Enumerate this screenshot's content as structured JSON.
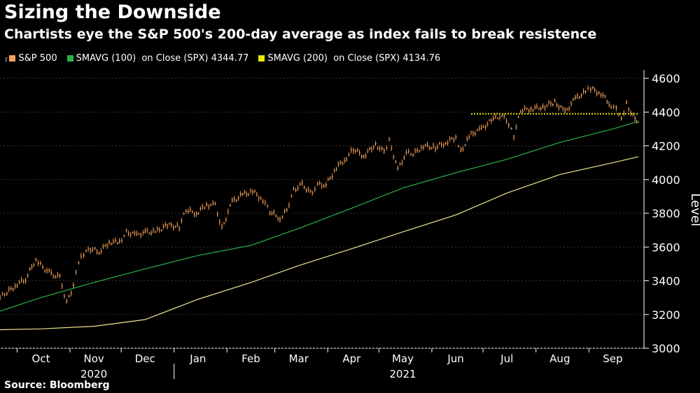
{
  "chart_data": {
    "type": "line",
    "title": "Sizing the Downside",
    "subtitle": "Chartists eye the S&P 500's 200-day average as index fails to break resistence",
    "ylabel": "Level",
    "ylim": [
      3000,
      4650
    ],
    "yticks": [
      3000,
      3200,
      3400,
      3600,
      3800,
      4000,
      4200,
      4400,
      4600
    ],
    "x_range": [
      "2020-09-21",
      "2021-09-30"
    ],
    "x_months": [
      {
        "label": "Oct",
        "date": "2020-10-15"
      },
      {
        "label": "Nov",
        "date": "2020-11-15"
      },
      {
        "label": "Dec",
        "date": "2020-12-15"
      },
      {
        "label": "Jan",
        "date": "2021-01-15"
      },
      {
        "label": "Feb",
        "date": "2021-02-15"
      },
      {
        "label": "Mar",
        "date": "2021-03-15"
      },
      {
        "label": "Apr",
        "date": "2021-04-15"
      },
      {
        "label": "May",
        "date": "2021-05-15"
      },
      {
        "label": "Jun",
        "date": "2021-06-15"
      },
      {
        "label": "Jul",
        "date": "2021-07-15"
      },
      {
        "label": "Aug",
        "date": "2021-08-15"
      },
      {
        "label": "Sep",
        "date": "2021-09-15"
      }
    ],
    "x_years": [
      {
        "label": "2020",
        "date": "2020-11-15"
      },
      {
        "label": "2021",
        "date": "2021-05-15"
      }
    ],
    "year_divider": "2021-01-01",
    "resistance_level": 4390,
    "resistance_start": "2021-06-24",
    "legend_position": "top-left",
    "series": [
      {
        "name": "S&P 500",
        "style": "ohlc",
        "color": "#f7a35c",
        "points": [
          [
            "2020-09-21",
            3300
          ],
          [
            "2020-09-25",
            3330
          ],
          [
            "2020-10-01",
            3380
          ],
          [
            "2020-10-06",
            3410
          ],
          [
            "2020-10-12",
            3530
          ],
          [
            "2020-10-16",
            3480
          ],
          [
            "2020-10-21",
            3440
          ],
          [
            "2020-10-26",
            3420
          ],
          [
            "2020-10-30",
            3270
          ],
          [
            "2020-11-03",
            3370
          ],
          [
            "2020-11-06",
            3510
          ],
          [
            "2020-11-09",
            3560
          ],
          [
            "2020-11-13",
            3590
          ],
          [
            "2020-11-18",
            3570
          ],
          [
            "2020-11-24",
            3630
          ],
          [
            "2020-11-30",
            3630
          ],
          [
            "2020-12-04",
            3690
          ],
          [
            "2020-12-10",
            3670
          ],
          [
            "2020-12-15",
            3690
          ],
          [
            "2020-12-21",
            3690
          ],
          [
            "2020-12-28",
            3730
          ],
          [
            "2021-01-04",
            3720
          ],
          [
            "2021-01-08",
            3820
          ],
          [
            "2021-01-14",
            3800
          ],
          [
            "2021-01-20",
            3850
          ],
          [
            "2021-01-25",
            3850
          ],
          [
            "2021-01-29",
            3710
          ],
          [
            "2021-02-04",
            3870
          ],
          [
            "2021-02-10",
            3910
          ],
          [
            "2021-02-16",
            3930
          ],
          [
            "2021-02-22",
            3880
          ],
          [
            "2021-02-26",
            3810
          ],
          [
            "2021-03-04",
            3770
          ],
          [
            "2021-03-08",
            3820
          ],
          [
            "2021-03-12",
            3940
          ],
          [
            "2021-03-17",
            3970
          ],
          [
            "2021-03-23",
            3910
          ],
          [
            "2021-03-26",
            3970
          ],
          [
            "2021-03-31",
            3970
          ],
          [
            "2021-04-06",
            4070
          ],
          [
            "2021-04-12",
            4130
          ],
          [
            "2021-04-16",
            4180
          ],
          [
            "2021-04-22",
            4140
          ],
          [
            "2021-04-29",
            4210
          ],
          [
            "2021-05-04",
            4160
          ],
          [
            "2021-05-07",
            4230
          ],
          [
            "2021-05-12",
            4060
          ],
          [
            "2021-05-17",
            4160
          ],
          [
            "2021-05-21",
            4150
          ],
          [
            "2021-05-27",
            4200
          ],
          [
            "2021-06-03",
            4190
          ],
          [
            "2021-06-09",
            4220
          ],
          [
            "2021-06-15",
            4250
          ],
          [
            "2021-06-18",
            4170
          ],
          [
            "2021-06-24",
            4270
          ],
          [
            "2021-06-30",
            4300
          ],
          [
            "2021-07-07",
            4360
          ],
          [
            "2021-07-12",
            4380
          ],
          [
            "2021-07-16",
            4330
          ],
          [
            "2021-07-19",
            4260
          ],
          [
            "2021-07-23",
            4410
          ],
          [
            "2021-07-29",
            4420
          ],
          [
            "2021-08-05",
            4430
          ],
          [
            "2021-08-12",
            4460
          ],
          [
            "2021-08-18",
            4400
          ],
          [
            "2021-08-24",
            4480
          ],
          [
            "2021-08-30",
            4520
          ],
          [
            "2021-09-02",
            4540
          ],
          [
            "2021-09-08",
            4510
          ],
          [
            "2021-09-14",
            4440
          ],
          [
            "2021-09-17",
            4430
          ],
          [
            "2021-09-20",
            4360
          ],
          [
            "2021-09-23",
            4450
          ],
          [
            "2021-09-28",
            4350
          ],
          [
            "2021-09-30",
            4340
          ]
        ]
      },
      {
        "name": "SMAVG (100)  on Close (SPX) 4344.77",
        "style": "line",
        "color": "#2ab14a",
        "points": [
          [
            "2020-09-21",
            3220
          ],
          [
            "2020-10-15",
            3300
          ],
          [
            "2020-11-15",
            3390
          ],
          [
            "2020-12-15",
            3470
          ],
          [
            "2021-01-15",
            3550
          ],
          [
            "2021-02-15",
            3610
          ],
          [
            "2021-03-15",
            3710
          ],
          [
            "2021-04-15",
            3830
          ],
          [
            "2021-05-15",
            3950
          ],
          [
            "2021-06-15",
            4040
          ],
          [
            "2021-07-15",
            4120
          ],
          [
            "2021-08-15",
            4220
          ],
          [
            "2021-09-15",
            4300
          ],
          [
            "2021-09-30",
            4345
          ]
        ]
      },
      {
        "name": "SMAVG (200)  on Close (SPX) 4134.76",
        "style": "line",
        "color": "#f0e68c",
        "points": [
          [
            "2020-09-21",
            3110
          ],
          [
            "2020-10-15",
            3115
          ],
          [
            "2020-11-15",
            3130
          ],
          [
            "2020-12-15",
            3170
          ],
          [
            "2021-01-15",
            3290
          ],
          [
            "2021-02-15",
            3390
          ],
          [
            "2021-03-15",
            3490
          ],
          [
            "2021-04-15",
            3590
          ],
          [
            "2021-05-15",
            3690
          ],
          [
            "2021-06-15",
            3790
          ],
          [
            "2021-07-15",
            3920
          ],
          [
            "2021-08-15",
            4030
          ],
          [
            "2021-09-15",
            4100
          ],
          [
            "2021-09-30",
            4135
          ]
        ]
      }
    ]
  },
  "legend": {
    "spx": "S&P 500",
    "sma100": "SMAVG (100)  on Close (SPX) 4344.77",
    "sma200": "SMAVG (200)  on Close (SPX) 4134.76",
    "color_spx": "#f7a35c",
    "color_sma100": "#2ab14a",
    "color_sma200": "#e8e800"
  },
  "source": "Source: Bloomberg"
}
